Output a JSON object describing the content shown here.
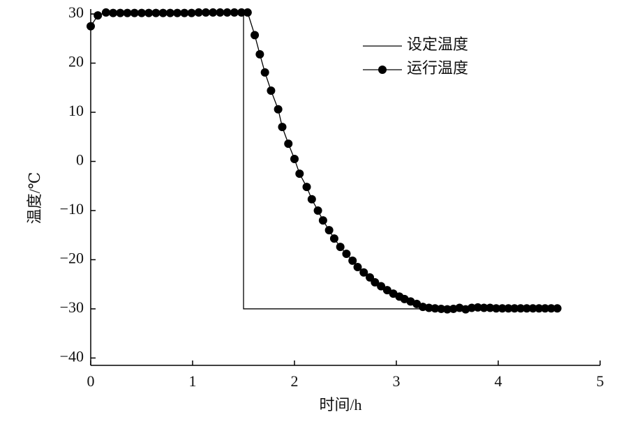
{
  "chart_data": {
    "type": "line",
    "xlabel": "时间/h",
    "ylabel": "温度/℃",
    "xlim": [
      0,
      5
    ],
    "xticks": [
      0,
      1,
      2,
      3,
      4,
      5
    ],
    "ylim": [
      -41.5,
      31
    ],
    "yticks": [
      30,
      20,
      10,
      0,
      {
        "value": -10,
        "label": "−10"
      },
      {
        "value": -20,
        "label": "−20"
      },
      {
        "value": -30,
        "label": "−30"
      },
      {
        "value": -40,
        "label": "−40"
      }
    ],
    "legend": "upper right",
    "series": [
      {
        "name": "设定温度",
        "color": "#000000",
        "marker": "none",
        "x": [
          0,
          1.5,
          1.5,
          4.58
        ],
        "values": [
          30,
          30,
          -30,
          -30
        ]
      },
      {
        "name": "运行温度",
        "color": "#000000",
        "marker": "circle",
        "x": [
          0,
          0.07,
          0.15,
          0.22,
          0.29,
          0.36,
          0.43,
          0.5,
          0.57,
          0.64,
          0.71,
          0.78,
          0.85,
          0.92,
          0.99,
          1.06,
          1.13,
          1.2,
          1.27,
          1.34,
          1.41,
          1.48,
          1.54,
          1.61,
          1.66,
          1.71,
          1.77,
          1.84,
          1.88,
          1.94,
          2.0,
          2.05,
          2.12,
          2.17,
          2.23,
          2.28,
          2.34,
          2.39,
          2.45,
          2.51,
          2.57,
          2.62,
          2.68,
          2.74,
          2.79,
          2.85,
          2.91,
          2.97,
          3.03,
          3.08,
          3.14,
          3.2,
          3.26,
          3.32,
          3.38,
          3.44,
          3.5,
          3.56,
          3.62,
          3.68,
          3.74,
          3.8,
          3.86,
          3.92,
          3.98,
          4.04,
          4.1,
          4.16,
          4.22,
          4.28,
          4.34,
          4.4,
          4.46,
          4.52,
          4.58
        ],
        "values": [
          27.5,
          29.7,
          30.3,
          30.2,
          30.2,
          30.2,
          30.2,
          30.2,
          30.2,
          30.2,
          30.2,
          30.2,
          30.2,
          30.2,
          30.2,
          30.3,
          30.3,
          30.3,
          30.3,
          30.3,
          30.3,
          30.3,
          30.3,
          25.7,
          21.8,
          18.1,
          14.4,
          10.6,
          7.0,
          3.6,
          0.5,
          -2.5,
          -5.2,
          -7.7,
          -10.0,
          -12.0,
          -14.0,
          -15.7,
          -17.4,
          -18.8,
          -20.2,
          -21.5,
          -22.6,
          -23.6,
          -24.6,
          -25.4,
          -26.2,
          -26.9,
          -27.5,
          -28.0,
          -28.5,
          -29.0,
          -29.6,
          -29.8,
          -29.9,
          -30.0,
          -30.1,
          -30.0,
          -29.8,
          -30.1,
          -29.8,
          -29.7,
          -29.8,
          -29.8,
          -29.9,
          -29.9,
          -29.9,
          -29.9,
          -29.9,
          -29.9,
          -29.9,
          -29.9,
          -29.9,
          -29.9,
          -29.9
        ]
      }
    ]
  }
}
